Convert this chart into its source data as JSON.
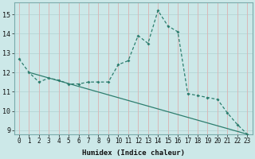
{
  "xlabel": "Humidex (Indice chaleur)",
  "bg_color": "#cce8e8",
  "grid_color_h": "#b8d8d8",
  "grid_color_v": "#d8b8b8",
  "line_color": "#2e7d6e",
  "xlim": [
    -0.5,
    23.5
  ],
  "ylim": [
    8.8,
    15.6
  ],
  "yticks": [
    9,
    10,
    11,
    12,
    13,
    14,
    15
  ],
  "xticks": [
    0,
    1,
    2,
    3,
    4,
    5,
    6,
    7,
    8,
    9,
    10,
    11,
    12,
    13,
    14,
    15,
    16,
    17,
    18,
    19,
    20,
    21,
    22,
    23
  ],
  "line1_x": [
    0,
    1,
    2,
    3,
    4,
    5,
    6,
    7,
    8,
    9,
    10,
    11,
    12,
    13,
    14,
    15,
    16,
    17,
    18,
    19,
    20,
    21,
    22,
    23
  ],
  "line1_y": [
    12.7,
    12.0,
    11.5,
    11.7,
    11.6,
    11.4,
    11.4,
    11.5,
    11.5,
    11.5,
    12.4,
    12.6,
    13.9,
    13.5,
    15.2,
    14.4,
    14.1,
    10.9,
    10.8,
    10.7,
    10.6,
    9.9,
    9.3,
    8.8
  ],
  "line2_x": [
    1,
    23
  ],
  "line2_y": [
    12.0,
    8.8
  ],
  "tick_fontsize": 5.5,
  "xlabel_fontsize": 6.5
}
